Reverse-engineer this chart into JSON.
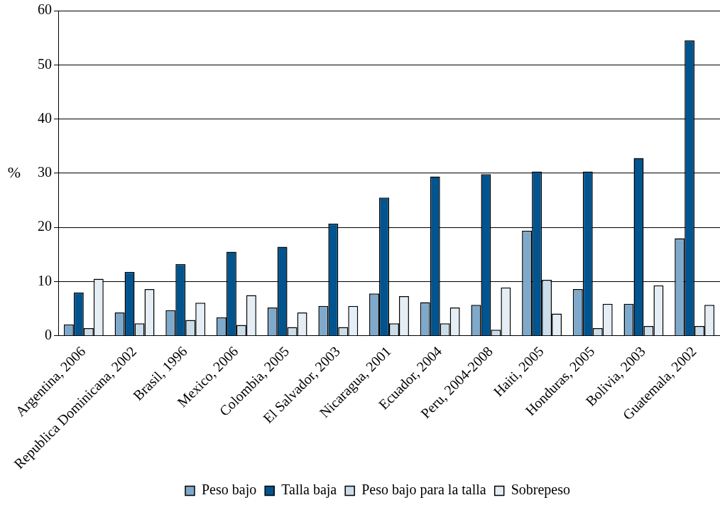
{
  "chart_data": {
    "type": "bar",
    "ylabel": "%",
    "categories": [
      "Argentina, 2006",
      "Republica Dominicana, 2002",
      "Brasil, 1996",
      "Mexico, 2006",
      "Colombia, 2005",
      "El Salvador, 2003",
      "Nicaragua, 2001",
      "Ecuador, 2004",
      "Peru, 2004-2008",
      "Haiti, 2005",
      "Honduras, 2005",
      "Bolivia, 2003",
      "Guatemala, 2002"
    ],
    "series": [
      {
        "name": "Peso bajo",
        "color": "#7fa9cb",
        "values": [
          2.1,
          4.3,
          4.7,
          3.4,
          5.2,
          5.5,
          7.8,
          6.2,
          5.7,
          19.4,
          8.6,
          5.9,
          18.0
        ]
      },
      {
        "name": "Talla baja",
        "color": "#02548f",
        "values": [
          8.0,
          11.8,
          13.2,
          15.5,
          16.4,
          20.7,
          25.5,
          29.4,
          29.8,
          30.3,
          30.3,
          32.8,
          54.5
        ]
      },
      {
        "name": "Peso bajo para la talla",
        "color": "#cbdde9",
        "values": [
          1.4,
          2.3,
          2.9,
          2.0,
          1.6,
          1.6,
          2.3,
          2.3,
          1.1,
          10.3,
          1.4,
          1.8,
          1.8
        ]
      },
      {
        "name": "Sobrepeso",
        "color": "#e5edf5",
        "values": [
          10.5,
          8.6,
          6.1,
          7.5,
          4.3,
          5.5,
          7.3,
          5.2,
          8.9,
          4.1,
          5.9,
          9.3,
          5.7
        ]
      }
    ],
    "ylim": [
      0,
      60
    ],
    "yticks": [
      0,
      10,
      20,
      30,
      40,
      50,
      60
    ],
    "grid": "y",
    "legend": "bottom"
  }
}
